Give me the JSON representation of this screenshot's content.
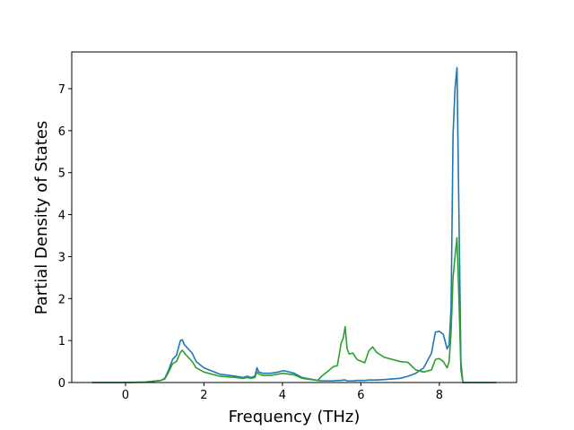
{
  "chart_data": {
    "type": "line",
    "xlabel": "Frequency (THz)",
    "ylabel": "Partial Density of States",
    "x": [
      -0.85,
      0,
      0.5,
      0.9,
      1.0,
      1.1,
      1.2,
      1.3,
      1.4,
      1.45,
      1.5,
      1.6,
      1.7,
      1.8,
      2.0,
      2.4,
      2.8,
      3.0,
      3.1,
      3.2,
      3.3,
      3.35,
      3.4,
      3.5,
      3.7,
      3.9,
      4.0,
      4.1,
      4.3,
      4.5,
      4.9,
      5.0,
      5.2,
      5.3,
      5.4,
      5.5,
      5.55,
      5.6,
      5.65,
      5.7,
      5.8,
      5.9,
      6.1,
      6.2,
      6.3,
      6.4,
      6.6,
      7.0,
      7.2,
      7.4,
      7.6,
      7.8,
      7.9,
      8.0,
      8.1,
      8.2,
      8.25,
      8.3,
      8.35,
      8.4,
      8.45,
      8.5,
      8.55,
      8.6,
      9.45
    ],
    "series": [
      {
        "color": "#1f77b4",
        "values": [
          0,
          0,
          0.01,
          0.05,
          0.1,
          0.3,
          0.55,
          0.65,
          1.0,
          1.02,
          0.9,
          0.8,
          0.7,
          0.5,
          0.35,
          0.2,
          0.15,
          0.12,
          0.15,
          0.12,
          0.15,
          0.35,
          0.25,
          0.22,
          0.22,
          0.25,
          0.28,
          0.27,
          0.22,
          0.12,
          0.05,
          0.04,
          0.04,
          0.04,
          0.05,
          0.05,
          0.06,
          0.06,
          0.04,
          0.04,
          0.04,
          0.05,
          0.05,
          0.06,
          0.06,
          0.06,
          0.07,
          0.1,
          0.15,
          0.22,
          0.35,
          0.7,
          1.2,
          1.22,
          1.15,
          0.8,
          0.9,
          1.8,
          5.9,
          7.0,
          7.5,
          4.0,
          0.5,
          0,
          0
        ]
      },
      {
        "color": "#2ca02c",
        "values": [
          0,
          0,
          0.01,
          0.05,
          0.08,
          0.25,
          0.45,
          0.5,
          0.72,
          0.77,
          0.7,
          0.6,
          0.5,
          0.35,
          0.25,
          0.15,
          0.12,
          0.1,
          0.12,
          0.1,
          0.12,
          0.25,
          0.2,
          0.17,
          0.17,
          0.2,
          0.22,
          0.21,
          0.18,
          0.1,
          0.05,
          0.15,
          0.3,
          0.38,
          0.4,
          0.95,
          1.05,
          1.33,
          0.8,
          0.68,
          0.7,
          0.55,
          0.47,
          0.75,
          0.85,
          0.72,
          0.6,
          0.5,
          0.48,
          0.3,
          0.25,
          0.3,
          0.55,
          0.57,
          0.5,
          0.35,
          0.5,
          1.2,
          2.5,
          3.0,
          3.45,
          2.0,
          0.3,
          0,
          0
        ]
      }
    ],
    "xlim": [
      -1.37,
      9.97
    ],
    "ylim": [
      0,
      7.875
    ],
    "xticks": [
      0,
      2,
      4,
      6,
      8
    ],
    "yticks": [
      0,
      1,
      2,
      3,
      4,
      5,
      6,
      7
    ]
  }
}
